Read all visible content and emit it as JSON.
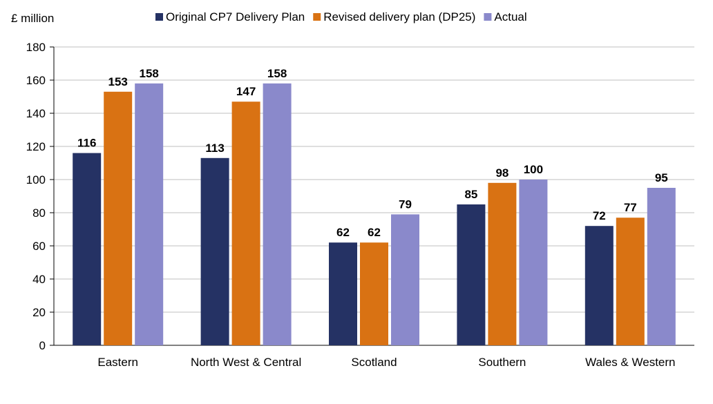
{
  "chart_data": {
    "type": "bar",
    "ylabel": "£ million",
    "categories": [
      "Eastern",
      "North West & Central",
      "Scotland",
      "Southern",
      "Wales & Western"
    ],
    "series": [
      {
        "name": "Original CP7 Delivery Plan",
        "color": "#253264",
        "values": [
          116,
          113,
          62,
          85,
          72
        ]
      },
      {
        "name": "Revised delivery plan (DP25)",
        "color": "#d97213",
        "values": [
          153,
          147,
          62,
          98,
          77
        ]
      },
      {
        "name": "Actual",
        "color": "#8a89cb",
        "values": [
          158,
          158,
          79,
          100,
          95
        ]
      }
    ],
    "ylim": [
      0,
      180
    ],
    "yticks": [
      0,
      20,
      40,
      60,
      80,
      100,
      120,
      140,
      160,
      180
    ],
    "grid": true,
    "legend_position": "top"
  }
}
